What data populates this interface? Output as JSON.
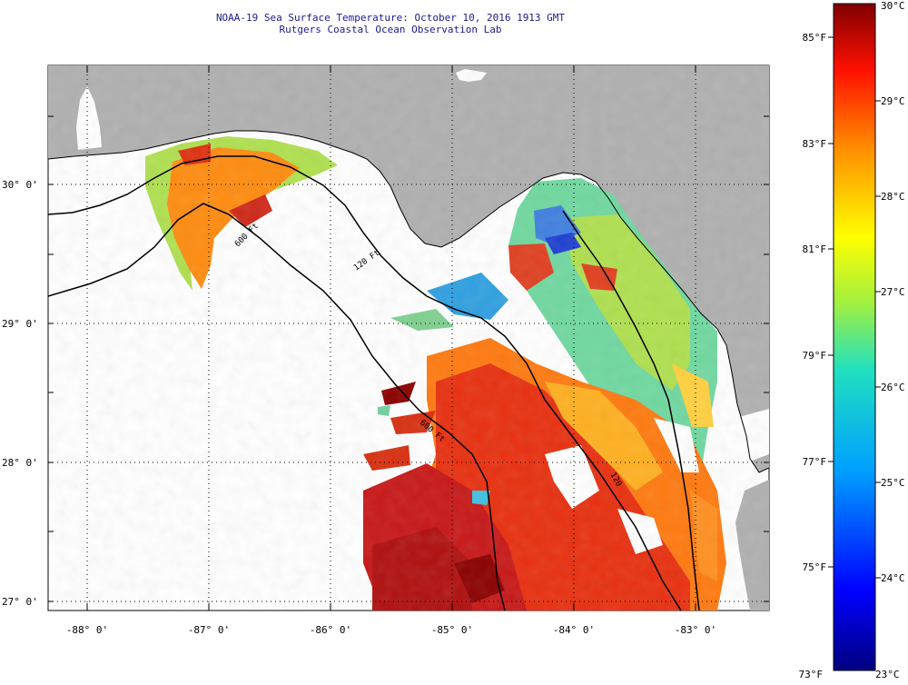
{
  "title": {
    "line1": "NOAA-19 Sea Surface Temperature:  October 10, 2016 1913 GMT",
    "line2": "Rutgers Coastal Ocean Observation Lab"
  },
  "axes": {
    "lon_labels": [
      "-88° 0'",
      "-87° 0'",
      "-86° 0'",
      "-85° 0'",
      "-84° 0'",
      "-83° 0'"
    ],
    "lat_labels": [
      "30° 0'",
      "29° 0'",
      "28° 0'",
      "27° 0'"
    ]
  },
  "contours": {
    "shelf_120": "120 Ft",
    "slope_600": "600 Ft",
    "slope_600_south": "600 Ft",
    "inner_120_south": "120"
  },
  "colorbar": {
    "celsius": [
      "30°C",
      "29°C",
      "28°C",
      "27°C",
      "26°C",
      "25°C",
      "24°C",
      "23°C"
    ],
    "fahrenheit": [
      "85°F",
      "83°F",
      "81°F",
      "79°F",
      "77°F",
      "75°F",
      "73°F"
    ]
  },
  "colors": {
    "land": "#b0b0b0",
    "warm": "#c81010",
    "hot": "#8b0000",
    "cold": "#1020c0"
  }
}
